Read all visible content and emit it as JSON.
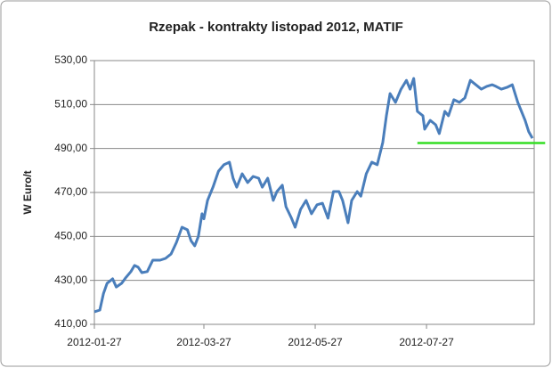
{
  "chart_data": {
    "type": "line",
    "title": "Rzepak - kontrakty listopad 2012, MATIF",
    "y_label": "W Euro/t",
    "x": [
      "2012-01-27",
      "2012-01-30",
      "2012-02-01",
      "2012-02-03",
      "2012-02-06",
      "2012-02-08",
      "2012-02-11",
      "2012-02-13",
      "2012-02-16",
      "2012-02-18",
      "2012-02-20",
      "2012-02-22",
      "2012-02-25",
      "2012-02-28",
      "2012-03-03",
      "2012-03-06",
      "2012-03-09",
      "2012-03-12",
      "2012-03-15",
      "2012-03-18",
      "2012-03-20",
      "2012-03-22",
      "2012-03-24",
      "2012-03-26",
      "2012-03-27",
      "2012-03-29",
      "2012-04-01",
      "2012-04-04",
      "2012-04-07",
      "2012-04-10",
      "2012-04-12",
      "2012-04-14",
      "2012-04-17",
      "2012-04-20",
      "2012-04-23",
      "2012-04-26",
      "2012-04-28",
      "2012-05-01",
      "2012-05-04",
      "2012-05-06",
      "2012-05-09",
      "2012-05-11",
      "2012-05-14",
      "2012-05-16",
      "2012-05-19",
      "2012-05-22",
      "2012-05-25",
      "2012-05-28",
      "2012-05-31",
      "2012-06-03",
      "2012-06-06",
      "2012-06-09",
      "2012-06-11",
      "2012-06-14",
      "2012-06-16",
      "2012-06-19",
      "2012-06-21",
      "2012-06-24",
      "2012-06-27",
      "2012-06-30",
      "2012-07-03",
      "2012-07-05",
      "2012-07-07",
      "2012-07-10",
      "2012-07-13",
      "2012-07-16",
      "2012-07-18",
      "2012-07-20",
      "2012-07-22",
      "2012-07-25",
      "2012-07-26",
      "2012-07-29",
      "2012-08-01",
      "2012-08-03",
      "2012-08-06",
      "2012-08-08",
      "2012-08-11",
      "2012-08-14",
      "2012-08-17",
      "2012-08-20",
      "2012-08-23",
      "2012-08-26",
      "2012-08-29",
      "2012-09-01",
      "2012-09-03",
      "2012-09-06",
      "2012-09-09",
      "2012-09-12",
      "2012-09-15",
      "2012-09-17",
      "2012-09-19",
      "2012-09-21",
      "2012-09-23"
    ],
    "series": [
      {
        "color": "#4a7ebb",
        "values": [
          415.7,
          416.5,
          424,
          428.7,
          430.7,
          427,
          428.7,
          431,
          434,
          436.8,
          436,
          433.5,
          434,
          439.2,
          439.2,
          440,
          442,
          447.3,
          454.2,
          453,
          448,
          445.7,
          450,
          460.3,
          458,
          466.4,
          472.4,
          479.7,
          482.6,
          483.8,
          476.5,
          472.4,
          478.5,
          474.5,
          477.3,
          476.5,
          472.4,
          476.5,
          466.4,
          470.4,
          473.3,
          463.5,
          458.3,
          454.2,
          462.3,
          466.4,
          460.3,
          464.4,
          465.1,
          458.3,
          470.4,
          470.4,
          466.4,
          456.2,
          466.4,
          470.4,
          468.3,
          478.5,
          483.8,
          482.6,
          492.7,
          504.9,
          515,
          511,
          517,
          521,
          517,
          521.9,
          506.9,
          504.9,
          498.8,
          502.8,
          500.8,
          496.8,
          506.9,
          504.9,
          512.2,
          511,
          513,
          521,
          519,
          517,
          518.3,
          519,
          518.3,
          517,
          517.8,
          519,
          511,
          506.9,
          502.8,
          497.6,
          494.7
        ]
      }
    ],
    "reference_line": {
      "value": 492.5,
      "x": [
        "2012-07-22",
        "2012-09-30"
      ],
      "color": "#33dd22"
    },
    "xlim": [
      "2012-01-27",
      "2012-09-24"
    ],
    "xticks": [
      "2012-01-27",
      "2012-03-27",
      "2012-05-27",
      "2012-07-27"
    ],
    "ylim": [
      410,
      530
    ],
    "yticks": [
      {
        "value": 410,
        "label": "410,00"
      },
      {
        "value": 430,
        "label": "430,00"
      },
      {
        "value": 450,
        "label": "450,00"
      },
      {
        "value": 470,
        "label": "470,00"
      },
      {
        "value": 490,
        "label": "490,00"
      },
      {
        "value": 510,
        "label": "510,00"
      },
      {
        "value": 530,
        "label": "530,00"
      }
    ],
    "grid": true
  }
}
